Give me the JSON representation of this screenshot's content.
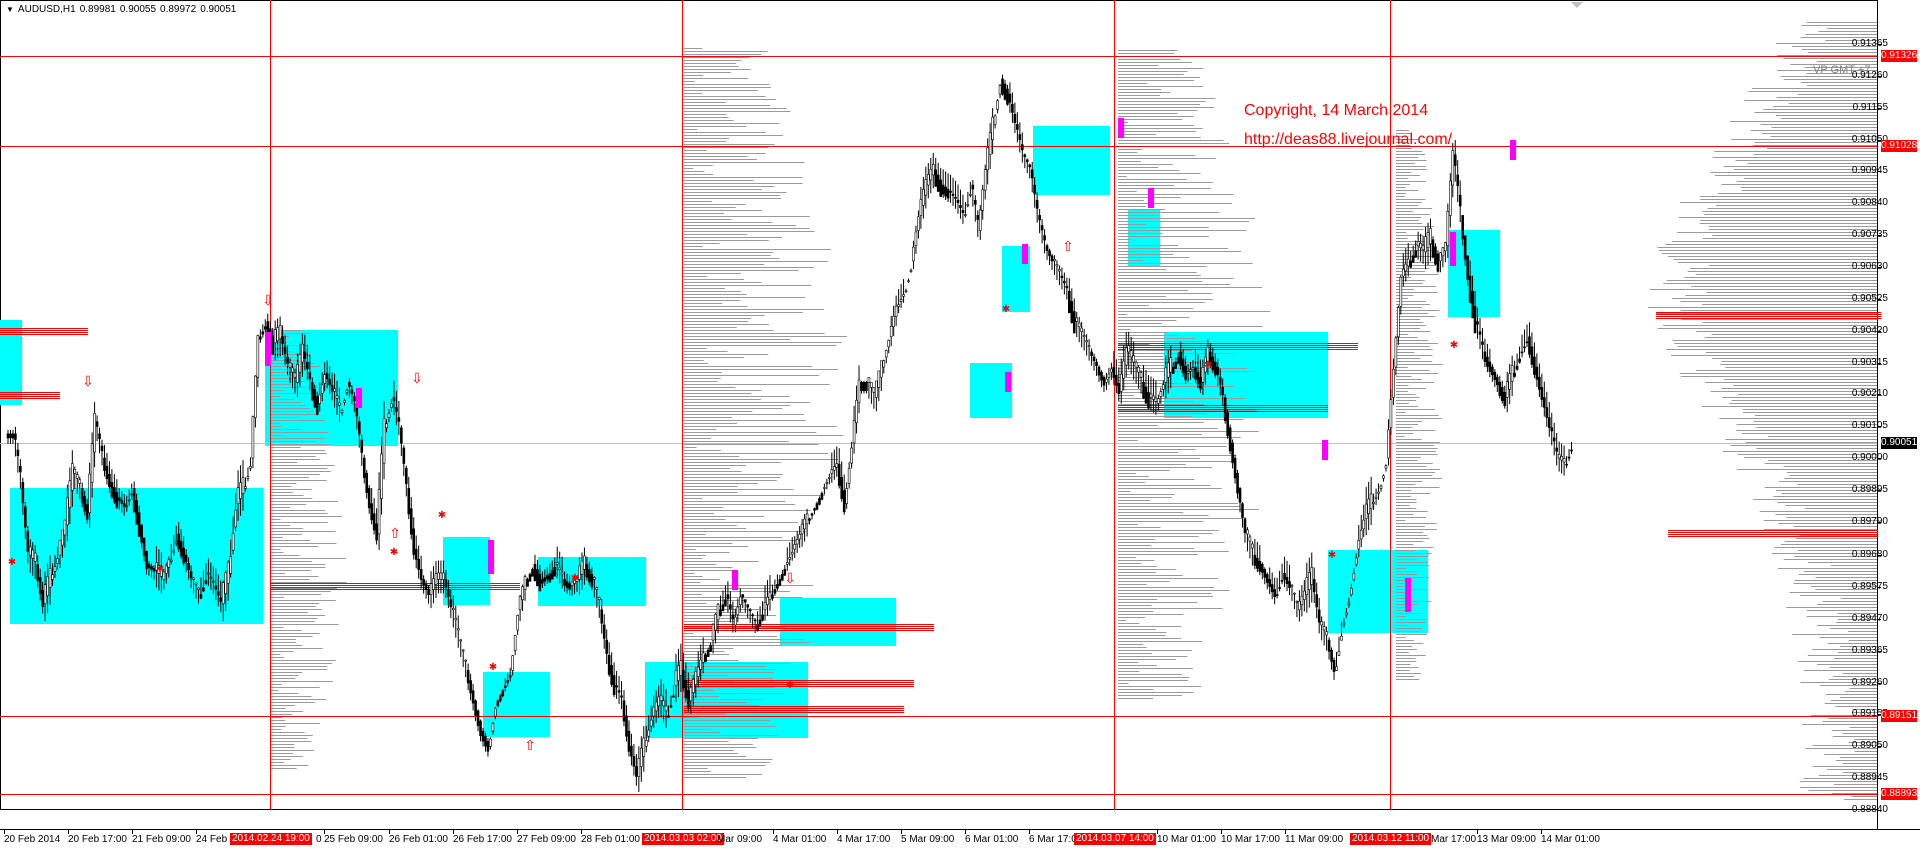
{
  "header": {
    "symbol_tf": "AUDUSD,H1",
    "open": "0.89981",
    "high": "0.90055",
    "low": "0.89972",
    "close": "0.90051",
    "menu_icon": "triangle-down-icon"
  },
  "copyright": {
    "line1": "Copyright, 14 March 2014",
    "line2": "http://deas88.livejournal.com/"
  },
  "indicator_label": "VP GMT +7",
  "price_scale": [
    "0.91365",
    "0.91260",
    "0.91155",
    "0.91050",
    "0.90945",
    "0.90840",
    "0.90735",
    "0.90630",
    "0.90525",
    "0.90420",
    "0.90315",
    "0.90210",
    "0.90105",
    "0.90000",
    "0.89895",
    "0.89790",
    "0.89680",
    "0.89575",
    "0.89470",
    "0.89365",
    "0.89260",
    "0.89155",
    "0.89050",
    "0.88945",
    "0.88840"
  ],
  "price_tags": [
    {
      "text": "0.91326",
      "kind": "red"
    },
    {
      "text": "0.91028",
      "kind": "red"
    },
    {
      "text": "0.90051",
      "kind": "current"
    },
    {
      "text": "0.89151",
      "kind": "red"
    },
    {
      "text": "0.88893",
      "kind": "red"
    }
  ],
  "time_labels": [
    "20 Feb 2014",
    "20 Feb 17:00",
    "21 Feb 09:00",
    "24 Feb",
    "25 Feb 09:00",
    "26 Feb 01:00",
    "26 Feb 17:00",
    "27 Feb 09:00",
    "28 Feb 01:00",
    "4 Mar 01:00",
    "4 Mar 17:00",
    "5 Mar 09:00",
    "6 Mar 01:00",
    "6 Mar 17:00",
    "10 Mar 01:00",
    "10 Mar 17:00",
    "11 Mar 09:00",
    "13 Mar 09:00",
    "14 Mar 01:00"
  ],
  "time_tags": [
    "2014.02.24 19:00",
    "2014.03.03 02:00",
    "2014.03.07 14:00",
    "2014.03.12 11:00"
  ],
  "time_tag_fragments": [
    "0",
    "Mar 09:00",
    "Mar 17:00"
  ],
  "chart_data": {
    "type": "candlestick",
    "symbol": "AUDUSD",
    "timeframe": "H1",
    "ylim": [
      0.8884,
      0.914
    ],
    "current_price": 0.90051,
    "ohlc_last": {
      "open": 0.89981,
      "high": 0.90055,
      "low": 0.89972,
      "close": 0.90051
    },
    "horizontal_levels": [
      0.91326,
      0.91028,
      0.89151,
      0.88893
    ],
    "session_separators": [
      "2014.02.24 19:00",
      "2014.03.03 02:00",
      "2014.03.07 14:00",
      "2014.03.12 11:00"
    ],
    "colors": {
      "level_line": "#ff0000",
      "box": "#00ffff",
      "volume_bar": "#808080",
      "poc": "#ff0000",
      "marker": "#ff00ff"
    },
    "close_path": [
      0.9008,
      0.8992,
      0.8968,
      0.8965,
      0.8952,
      0.896,
      0.8968,
      0.8978,
      0.8995,
      0.899,
      0.8982,
      0.9012,
      0.9,
      0.8992,
      0.8987,
      0.8984,
      0.899,
      0.8978,
      0.8965,
      0.8963,
      0.896,
      0.8966,
      0.8975,
      0.8968,
      0.896,
      0.8955,
      0.8962,
      0.8958,
      0.8952,
      0.8962,
      0.8985,
      0.899,
      0.9,
      0.904,
      0.9045,
      0.9038,
      0.904,
      0.903,
      0.9025,
      0.9035,
      0.9025,
      0.9018,
      0.9028,
      0.9022,
      0.9015,
      0.9025,
      0.9018,
      0.9,
      0.8985,
      0.8975,
      0.901,
      0.902,
      0.901,
      0.899,
      0.897,
      0.896,
      0.8955,
      0.896,
      0.896,
      0.895,
      0.894,
      0.893,
      0.892,
      0.891,
      0.8905,
      0.892,
      0.8925,
      0.893,
      0.895,
      0.896,
      0.8965,
      0.896,
      0.8962,
      0.8965,
      0.896,
      0.8958,
      0.896,
      0.8965,
      0.896,
      0.895,
      0.8935,
      0.8925,
      0.892,
      0.8905,
      0.8895,
      0.8905,
      0.8915,
      0.892,
      0.8915,
      0.8925,
      0.893,
      0.892,
      0.8928,
      0.8935,
      0.894,
      0.895,
      0.8955,
      0.8945,
      0.8955,
      0.895,
      0.8945,
      0.895,
      0.8955,
      0.896,
      0.8965,
      0.897,
      0.8975,
      0.898,
      0.8985,
      0.899,
      0.8995,
      0.8998,
      0.8985,
      0.9005,
      0.9025,
      0.9025,
      0.902,
      0.903,
      0.904,
      0.905,
      0.9055,
      0.9065,
      0.908,
      0.909,
      0.9095,
      0.909,
      0.9088,
      0.9085,
      0.908,
      0.909,
      0.9075,
      0.9095,
      0.911,
      0.9125,
      0.912,
      0.911,
      0.91,
      0.9095,
      0.908,
      0.907,
      0.9065,
      0.906,
      0.9055,
      0.9045,
      0.904,
      0.9035,
      0.903,
      0.9025,
      0.903,
      0.9022,
      0.9035,
      0.903,
      0.9025,
      0.902,
      0.9018,
      0.9025,
      0.903,
      0.9035,
      0.9028,
      0.903,
      0.9025,
      0.9035,
      0.903,
      0.902,
      0.9005,
      0.899,
      0.8975,
      0.8968,
      0.8965,
      0.896,
      0.8955,
      0.8962,
      0.8958,
      0.895,
      0.8955,
      0.896,
      0.8945,
      0.894,
      0.893,
      0.8945,
      0.8955,
      0.897,
      0.898,
      0.8985,
      0.899,
      0.9,
      0.903,
      0.906,
      0.9065,
      0.907,
      0.9068,
      0.9072,
      0.9065,
      0.907,
      0.91,
      0.908,
      0.906,
      0.9045,
      0.9035,
      0.903,
      0.9025,
      0.902,
      0.9028,
      0.9035,
      0.904,
      0.903,
      0.902,
      0.901,
      0.9,
      0.8998,
      0.9005
    ]
  }
}
